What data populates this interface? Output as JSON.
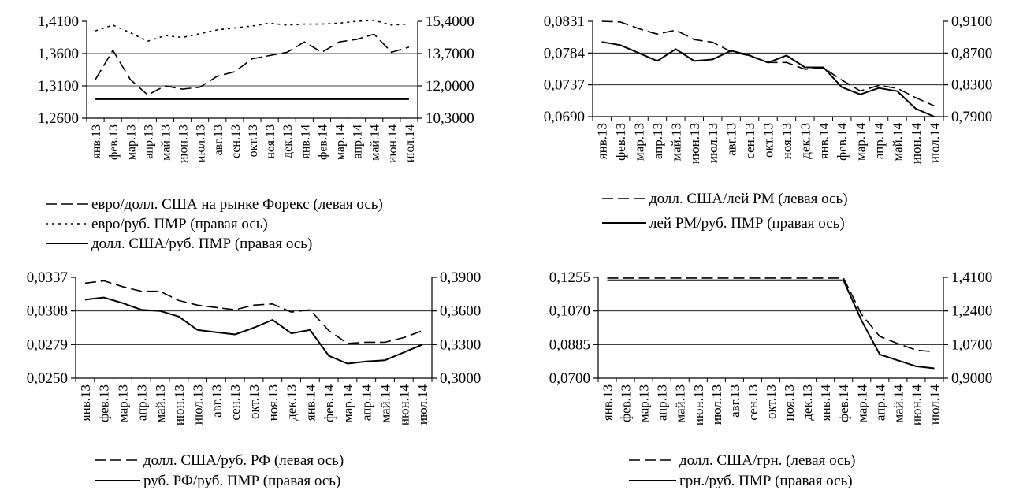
{
  "months": [
    "янв.13",
    "фев.13",
    "мар.13",
    "апр.13",
    "май.13",
    "июн.13",
    "июл.13",
    "авг.13",
    "сен.13",
    "окт.13",
    "ноя.13",
    "дек.13",
    "янв.14",
    "фев.14",
    "мар.14",
    "апр.14",
    "май.14",
    "июн.14",
    "июл.14"
  ],
  "chart_data": [
    {
      "type": "line",
      "title": "",
      "x": [
        "янв.13",
        "фев.13",
        "мар.13",
        "апр.13",
        "май.13",
        "июн.13",
        "июл.13",
        "авг.13",
        "сен.13",
        "окт.13",
        "ноя.13",
        "дек.13",
        "янв.14",
        "фев.14",
        "мар.14",
        "апр.14",
        "май.14",
        "июн.14",
        "июл.14"
      ],
      "left_axis": {
        "ylim": [
          1.26,
          1.41
        ],
        "ticks": [
          "1,4100",
          "1,3600",
          "1,3100",
          "1,2600"
        ],
        "tick_values": [
          1.41,
          1.36,
          1.31,
          1.26
        ]
      },
      "right_axis": {
        "ylim": [
          10.3,
          15.4
        ],
        "ticks": [
          "15,4000",
          "13,7000",
          "12,0000",
          "10,3000"
        ],
        "tick_values": [
          15.4,
          13.7,
          12.0,
          10.3
        ]
      },
      "series": [
        {
          "name": "евро/долл. США на рынке Форекс (левая ось)",
          "axis": "left",
          "dash": "long",
          "values": [
            1.32,
            1.365,
            1.32,
            1.296,
            1.31,
            1.305,
            1.308,
            1.325,
            1.332,
            1.352,
            1.357,
            1.362,
            1.378,
            1.362,
            1.378,
            1.382,
            1.39,
            1.362,
            1.37
          ]
        },
        {
          "name": "евро/руб. ПМР (правая ось)",
          "axis": "right",
          "dash": "short",
          "values": [
            14.9,
            15.2,
            14.8,
            14.35,
            14.65,
            14.55,
            14.75,
            14.95,
            15.05,
            15.15,
            15.3,
            15.2,
            15.25,
            15.25,
            15.3,
            15.4,
            15.45,
            15.2,
            15.25
          ]
        },
        {
          "name": "долл. США/руб. ПМР (правая ось)",
          "axis": "right",
          "dash": "solid",
          "values": [
            11.3,
            11.3,
            11.3,
            11.3,
            11.3,
            11.3,
            11.3,
            11.3,
            11.3,
            11.3,
            11.3,
            11.3,
            11.3,
            11.3,
            11.3,
            11.3,
            11.3,
            11.3,
            11.3
          ]
        }
      ]
    },
    {
      "type": "line",
      "title": "",
      "x": [
        "янв.13",
        "фев.13",
        "мар.13",
        "апр.13",
        "май.13",
        "июн.13",
        "июл.13",
        "авг.13",
        "сен.13",
        "окт.13",
        "ноя.13",
        "дек.13",
        "янв.14",
        "фев.14",
        "мар.14",
        "апр.14",
        "май.14",
        "июн.14",
        "июл.14"
      ],
      "left_axis": {
        "ylim": [
          0.069,
          0.0831
        ],
        "ticks": [
          "0,0831",
          "0,0784",
          "0,0737",
          "0,0690"
        ],
        "tick_values": [
          0.0831,
          0.0784,
          0.0737,
          0.069
        ]
      },
      "right_axis": {
        "ylim": [
          0.79,
          0.91
        ],
        "ticks": [
          "0,9100",
          "0,8700",
          "0,8300",
          "0,7900"
        ],
        "tick_values": [
          0.91,
          0.87,
          0.83,
          0.79
        ]
      },
      "series": [
        {
          "name": "долл. США/лей РМ (левая ось)",
          "axis": "left",
          "dash": "long",
          "values": [
            0.0831,
            0.083,
            0.082,
            0.0812,
            0.0818,
            0.0804,
            0.08,
            0.0786,
            0.078,
            0.077,
            0.077,
            0.076,
            0.0762,
            0.0744,
            0.0728,
            0.0736,
            0.0732,
            0.0718,
            0.0706
          ]
        },
        {
          "name": "лей РМ/руб. ПМР (правая ось)",
          "axis": "right",
          "dash": "solid",
          "values": [
            0.884,
            0.88,
            0.87,
            0.86,
            0.875,
            0.86,
            0.862,
            0.873,
            0.867,
            0.858,
            0.867,
            0.852,
            0.852,
            0.827,
            0.818,
            0.826,
            0.822,
            0.8,
            0.79
          ]
        }
      ]
    },
    {
      "type": "line",
      "title": "",
      "x": [
        "янв.13",
        "фев.13",
        "мар.13",
        "апр.13",
        "май.13",
        "июн.13",
        "июл.13",
        "авг.13",
        "сен.13",
        "окт.13",
        "ноя.13",
        "дек.13",
        "янв.14",
        "фев.14",
        "мар.14",
        "апр.14",
        "май.14",
        "июн.14",
        "июл.14"
      ],
      "left_axis": {
        "ylim": [
          0.025,
          0.0337
        ],
        "ticks": [
          "0,0337",
          "0,0308",
          "0,0279",
          "0,0250"
        ],
        "tick_values": [
          0.0337,
          0.0308,
          0.0279,
          0.025
        ]
      },
      "right_axis": {
        "ylim": [
          0.3,
          0.39
        ],
        "ticks": [
          "0,3900",
          "0,3600",
          "0,3300",
          "0,3000"
        ],
        "tick_values": [
          0.39,
          0.36,
          0.33,
          0.3
        ]
      },
      "series": [
        {
          "name": "долл. США/руб. РФ (левая ось)",
          "axis": "left",
          "dash": "long",
          "values": [
            0.0332,
            0.0334,
            0.0329,
            0.0325,
            0.0325,
            0.0317,
            0.0313,
            0.0311,
            0.0309,
            0.0313,
            0.0314,
            0.0307,
            0.0309,
            0.0291,
            0.028,
            0.0281,
            0.0281,
            0.0285,
            0.0291
          ]
        },
        {
          "name": "руб. РФ/руб. ПМР (правая ось)",
          "axis": "right",
          "dash": "solid",
          "values": [
            0.37,
            0.372,
            0.367,
            0.361,
            0.36,
            0.355,
            0.343,
            0.341,
            0.339,
            0.345,
            0.352,
            0.34,
            0.343,
            0.32,
            0.313,
            0.315,
            0.316,
            0.323,
            0.33
          ]
        }
      ]
    },
    {
      "type": "line",
      "title": "",
      "x": [
        "янв.13",
        "фев.13",
        "мар.13",
        "апр.13",
        "май.13",
        "июн.13",
        "июл.13",
        "авг.13",
        "сен.13",
        "окт.13",
        "ноя.13",
        "дек.13",
        "янв.14",
        "фев.14",
        "мар.14",
        "апр.14",
        "май.14",
        "июн.14",
        "июл.14"
      ],
      "left_axis": {
        "ylim": [
          0.07,
          0.1255
        ],
        "ticks": [
          "0,1255",
          "0,1070",
          "0,0885",
          "0,0700"
        ],
        "tick_values": [
          0.1255,
          0.107,
          0.0885,
          0.07
        ]
      },
      "right_axis": {
        "ylim": [
          0.9,
          1.41
        ],
        "ticks": [
          "1,4100",
          "1,2400",
          "1,0700",
          "0,9000"
        ],
        "tick_values": [
          1.41,
          1.24,
          1.07,
          0.9
        ]
      },
      "series": [
        {
          "name": "долл. США/грн. (левая ось)",
          "axis": "left",
          "dash": "long",
          "values": [
            0.1251,
            0.1251,
            0.1251,
            0.1251,
            0.1251,
            0.1251,
            0.1251,
            0.1251,
            0.1251,
            0.1251,
            0.1251,
            0.1251,
            0.1251,
            0.1251,
            0.105,
            0.093,
            0.089,
            0.0855,
            0.0845
          ]
        },
        {
          "name": "грн./руб. ПМР (правая ось)",
          "axis": "right",
          "dash": "solid",
          "values": [
            1.395,
            1.395,
            1.395,
            1.395,
            1.395,
            1.395,
            1.395,
            1.395,
            1.395,
            1.395,
            1.395,
            1.395,
            1.395,
            1.395,
            1.19,
            1.02,
            0.99,
            0.96,
            0.95
          ]
        }
      ]
    }
  ]
}
